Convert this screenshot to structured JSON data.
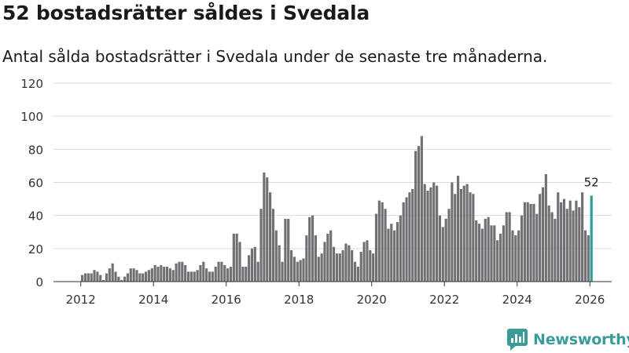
{
  "header": {
    "title": "52 bostadsrätter såldes i Svedala",
    "subtitle": "Antal sålda bostadsrätter i Svedala under de senaste tre månaderna."
  },
  "brand": {
    "name": "Newsworthy",
    "color": "#3a9c98"
  },
  "colors": {
    "bar": "#717075",
    "highlight": "#2a9d96",
    "grid": "#dcdcdc",
    "axis": "#333333"
  },
  "chart_data": {
    "type": "bar",
    "title": "52 bostadsrätter såldes i Svedala",
    "subtitle": "Antal sålda bostadsrätter i Svedala under de senaste tre månaderna.",
    "xlabel": "",
    "ylabel": "",
    "ylim": [
      0,
      120
    ],
    "yticks": [
      0,
      20,
      40,
      60,
      80,
      100,
      120
    ],
    "xlim": [
      2011.25,
      2026.6
    ],
    "xticks": [
      2012,
      2014,
      2016,
      2018,
      2020,
      2022,
      2024,
      2026
    ],
    "xtick_labels": [
      "2012",
      "2014",
      "2016",
      "2018",
      "2020",
      "2022",
      "2024",
      "2026"
    ],
    "grid": true,
    "start": [
      2012,
      1
    ],
    "period": "month",
    "highlight_label": "52",
    "values": [
      4,
      5,
      5,
      5,
      7,
      6,
      4,
      1,
      5,
      8,
      11,
      6,
      3,
      1,
      3,
      5,
      8,
      8,
      7,
      5,
      5,
      6,
      7,
      8,
      10,
      9,
      10,
      9,
      9,
      8,
      7,
      11,
      12,
      12,
      10,
      6,
      6,
      6,
      7,
      10,
      12,
      8,
      6,
      6,
      9,
      12,
      12,
      10,
      8,
      9,
      29,
      29,
      24,
      9,
      9,
      16,
      20,
      21,
      12,
      44,
      66,
      63,
      54,
      44,
      31,
      22,
      12,
      38,
      38,
      19,
      15,
      12,
      13,
      14,
      28,
      39,
      40,
      28,
      15,
      17,
      24,
      29,
      31,
      21,
      17,
      17,
      19,
      23,
      22,
      19,
      12,
      9,
      18,
      24,
      25,
      19,
      17,
      41,
      49,
      48,
      44,
      32,
      35,
      31,
      36,
      40,
      48,
      51,
      54,
      56,
      79,
      82,
      88,
      59,
      55,
      57,
      60,
      58,
      40,
      33,
      38,
      44,
      60,
      53,
      64,
      56,
      58,
      59,
      54,
      53,
      37,
      35,
      32,
      38,
      39,
      34,
      34,
      25,
      29,
      34,
      42,
      42,
      31,
      28,
      31,
      40,
      48,
      48,
      47,
      47,
      41,
      53,
      57,
      65,
      46,
      42,
      38,
      54,
      48,
      50,
      44,
      49,
      43,
      49,
      45,
      54,
      31,
      28,
      52
    ]
  }
}
